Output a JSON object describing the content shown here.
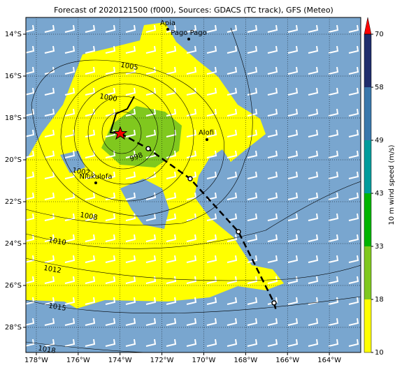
{
  "chart_data": {
    "type": "map",
    "title": "Forecast of 2020121500 (f000), Sources: GDACS (TC track), GFS (Meteo)",
    "xlim": [
      -178.5,
      -162.5
    ],
    "ylim": [
      -29.2,
      -13.2
    ],
    "xticks": [
      {
        "value": -178,
        "label": "178°W"
      },
      {
        "value": -176,
        "label": "176°W"
      },
      {
        "value": -174,
        "label": "174°W"
      },
      {
        "value": -172,
        "label": "172°W"
      },
      {
        "value": -170,
        "label": "170°W"
      },
      {
        "value": -168,
        "label": "168°W"
      },
      {
        "value": -166,
        "label": "166°W"
      },
      {
        "value": -164,
        "label": "164°W"
      }
    ],
    "yticks": [
      {
        "value": -14,
        "label": "14°S"
      },
      {
        "value": -16,
        "label": "16°S"
      },
      {
        "value": -18,
        "label": "18°S"
      },
      {
        "value": -20,
        "label": "20°S"
      },
      {
        "value": -22,
        "label": "22°S"
      },
      {
        "value": -24,
        "label": "24°S"
      },
      {
        "value": -26,
        "label": "26°S"
      },
      {
        "value": -28,
        "label": "28°S"
      }
    ],
    "grid": true,
    "colorbar": {
      "label": "10 m wind speed (m/s)",
      "ticks": [
        10,
        18,
        33,
        43,
        49,
        58,
        70
      ],
      "colors": [
        "#ffff00",
        "#80c81e",
        "#00b400",
        "#009c9c",
        "#3a78ac",
        "#1f2d6c"
      ],
      "extend_color": "#ff0000"
    },
    "contour_labels": [
      1005,
      1000,
      998,
      1002,
      1008,
      1010,
      1012,
      1015,
      1018
    ],
    "places": [
      "Apia",
      "Pago Pago",
      "Alofi",
      "Niukulofa"
    ]
  }
}
